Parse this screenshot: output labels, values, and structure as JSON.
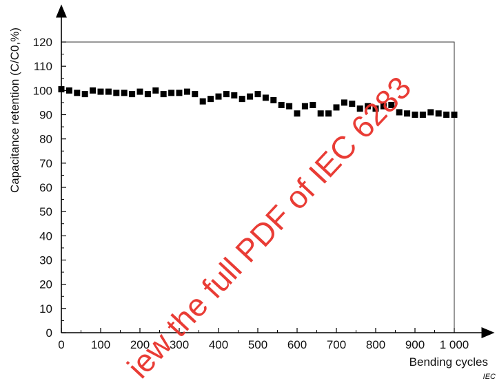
{
  "chart_data": {
    "type": "scatter",
    "xlabel": "Bending cycles",
    "ylabel": "Capacitance retention  (C/C0,%)",
    "xlim": [
      0,
      1000
    ],
    "ylim": [
      0,
      120
    ],
    "x_ticks": [
      0,
      100,
      200,
      300,
      400,
      500,
      600,
      700,
      800,
      900,
      1000
    ],
    "x_tick_labels": [
      "0",
      "100",
      "200",
      "300",
      "400",
      "500",
      "600",
      "700",
      "800",
      "900",
      "1 000"
    ],
    "y_ticks": [
      0,
      10,
      20,
      30,
      40,
      50,
      60,
      70,
      80,
      90,
      100,
      110,
      120
    ],
    "y_tick_labels": [
      "0",
      "10",
      "20",
      "30",
      "40",
      "50",
      "60",
      "70",
      "80",
      "90",
      "100",
      "110",
      "120"
    ],
    "marker": "square",
    "marker_color": "#000000",
    "grid": false,
    "series": [
      {
        "x": [
          0,
          20,
          40,
          60,
          80,
          100,
          120,
          140,
          160,
          180,
          200,
          220,
          240,
          260,
          280,
          300,
          320,
          340,
          360,
          380,
          400,
          420,
          440,
          460,
          480,
          500,
          520,
          540,
          560,
          580,
          600,
          620,
          640,
          660,
          680,
          700,
          720,
          740,
          760,
          780,
          800,
          820,
          840,
          860,
          880,
          900,
          920,
          940,
          960,
          980,
          1000
        ],
        "y": [
          100.5,
          100,
          99,
          98.5,
          100,
          99.5,
          99.5,
          99,
          99,
          98.5,
          99.5,
          98.5,
          100,
          98.5,
          99,
          99,
          99.5,
          98.5,
          95.5,
          96.5,
          97.5,
          98.5,
          98,
          96.5,
          97.5,
          98.5,
          97,
          96,
          94,
          93.5,
          90.5,
          93.5,
          94,
          90.5,
          90.5,
          93,
          95,
          94.5,
          92.5,
          93.5,
          92.5,
          93.5,
          94,
          91,
          90.5,
          90,
          90,
          91,
          90.5,
          90,
          90
        ]
      }
    ]
  },
  "credit": "IEC",
  "watermark": "iew the full PDF of IEC 6283"
}
